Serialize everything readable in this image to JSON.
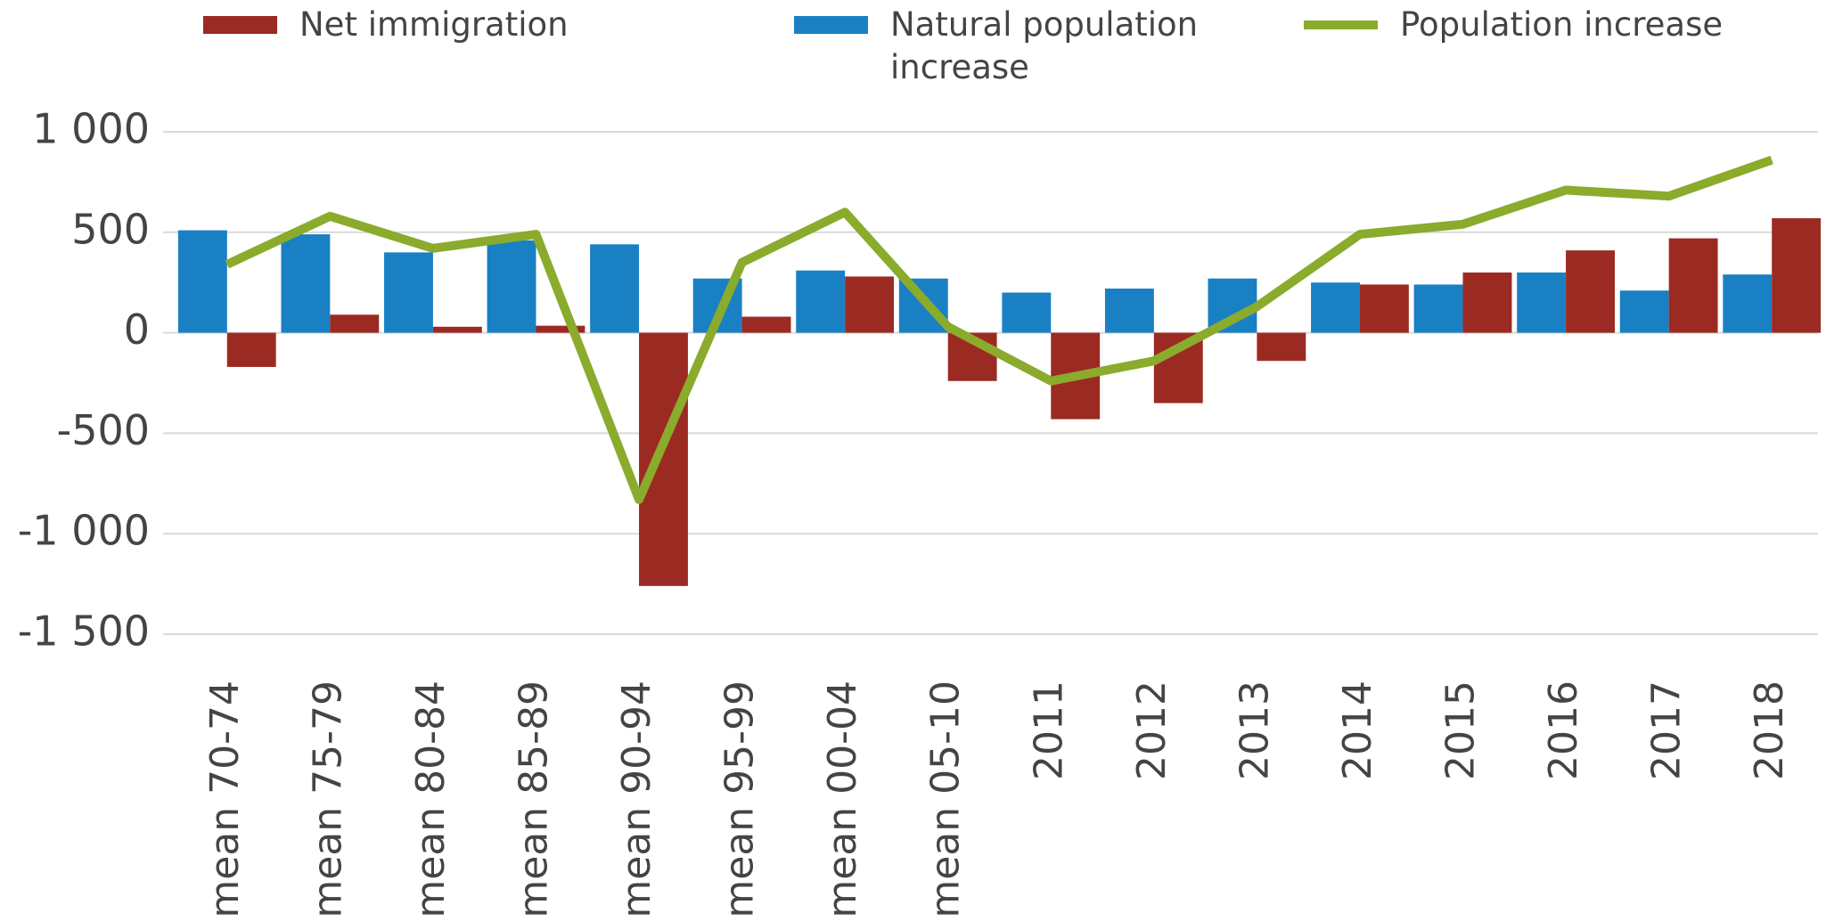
{
  "chart_data": {
    "type": "bar+line",
    "categories": [
      "mean 70-74",
      "mean 75-79",
      "mean 80-84",
      "mean 85-89",
      "mean 90-94",
      "mean 95-99",
      "mean 00-04",
      "mean 05-10",
      "2011",
      "2012",
      "2013",
      "2014",
      "2015",
      "2016",
      "2017",
      "2018"
    ],
    "series": [
      {
        "name": "Net immigration",
        "type": "bar",
        "color": "#9b2a22",
        "values": [
          -170,
          90,
          30,
          35,
          -1260,
          80,
          280,
          -240,
          -430,
          -350,
          -140,
          240,
          300,
          410,
          470,
          570
        ]
      },
      {
        "name": "Natural population increase",
        "type": "bar",
        "color": "#1a80c4",
        "values": [
          510,
          490,
          400,
          460,
          440,
          270,
          310,
          270,
          200,
          220,
          270,
          250,
          240,
          300,
          210,
          290
        ]
      },
      {
        "name": "Population increase",
        "type": "line",
        "color": "#8aab2c",
        "values": [
          340,
          580,
          420,
          490,
          -830,
          350,
          600,
          30,
          -240,
          -140,
          130,
          490,
          540,
          710,
          680,
          860
        ]
      }
    ],
    "ylim": [
      -1500,
      1000
    ],
    "yticks": [
      {
        "value": 1000,
        "label": "1 000"
      },
      500,
      0,
      -500,
      {
        "value": -1000,
        "label": "-1 000"
      },
      {
        "value": -1500,
        "label": "-1 500"
      }
    ],
    "grid": true,
    "legend": "top"
  }
}
